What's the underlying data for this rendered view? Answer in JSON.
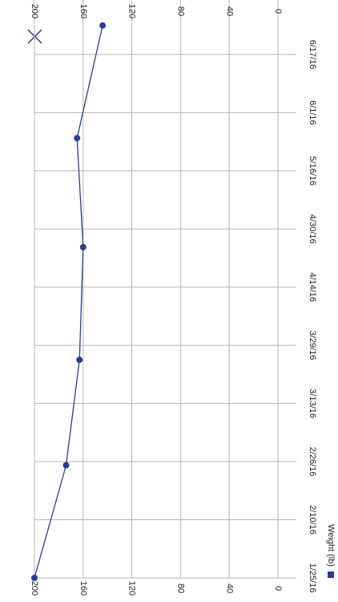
{
  "chart_data": {
    "type": "line",
    "x_label": null,
    "x": [
      "2016-01-25",
      "2016-02-25",
      "2016-03-25",
      "2016-04-25",
      "2016-05-25",
      "2016-06-25"
    ],
    "series": [
      {
        "name": "Weight (lb)",
        "color": "#2b3d8f",
        "values": [
          200,
          174,
          163,
          160,
          165,
          144
        ]
      }
    ],
    "xlim": [
      "2016-01-25",
      "2016-07-02"
    ],
    "xticks": [
      {
        "value": "2016-01-25",
        "label": "1/25/16"
      },
      {
        "value": "2016-02-10",
        "label": "2/10/16"
      },
      {
        "value": "2016-02-26",
        "label": "2/26/16"
      },
      {
        "value": "2016-03-13",
        "label": "3/13/16"
      },
      {
        "value": "2016-03-29",
        "label": "3/29/16"
      },
      {
        "value": "2016-04-14",
        "label": "4/14/16"
      },
      {
        "value": "2016-04-30",
        "label": "4/30/16"
      },
      {
        "value": "2016-05-16",
        "label": "5/16/16"
      },
      {
        "value": "2016-06-01",
        "label": "6/1/16"
      },
      {
        "value": "2016-06-17",
        "label": "6/17/16"
      }
    ],
    "ylim": [
      0,
      200
    ],
    "yticks": [
      0,
      40,
      80,
      120,
      160,
      200
    ],
    "grid": true,
    "legend": "bottom-right"
  }
}
